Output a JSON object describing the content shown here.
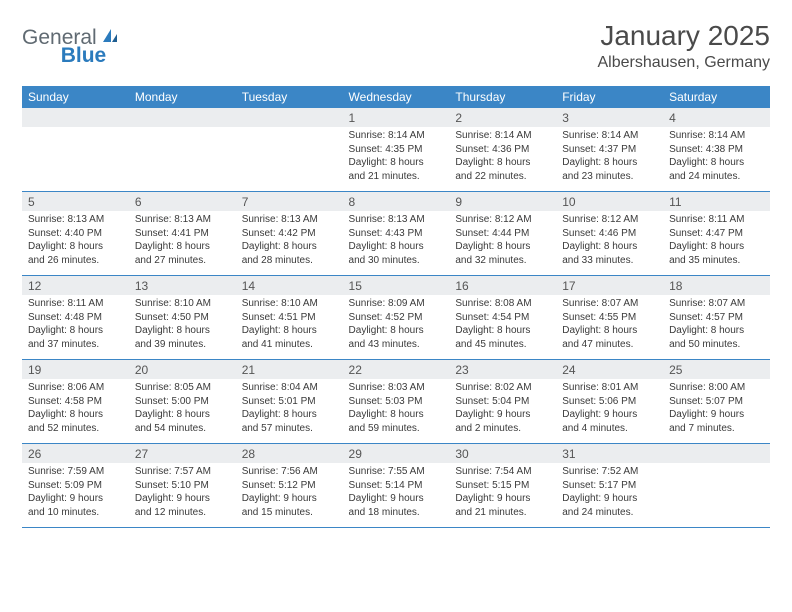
{
  "brand": {
    "part1": "General",
    "part2": "Blue"
  },
  "title": "January 2025",
  "location": "Albershausen, Germany",
  "colors": {
    "header_bg": "#3b86c6",
    "header_text": "#ffffff",
    "daynum_bg": "#ebedef",
    "text": "#3a3a3a",
    "logo_gray": "#606a72",
    "logo_blue": "#2b7bbd",
    "title_color": "#4a4a4a"
  },
  "dayNames": [
    "Sunday",
    "Monday",
    "Tuesday",
    "Wednesday",
    "Thursday",
    "Friday",
    "Saturday"
  ],
  "weeks": [
    [
      null,
      null,
      null,
      {
        "d": "1",
        "sr": "8:14 AM",
        "ss": "4:35 PM",
        "dh": "8",
        "dm": "21"
      },
      {
        "d": "2",
        "sr": "8:14 AM",
        "ss": "4:36 PM",
        "dh": "8",
        "dm": "22"
      },
      {
        "d": "3",
        "sr": "8:14 AM",
        "ss": "4:37 PM",
        "dh": "8",
        "dm": "23"
      },
      {
        "d": "4",
        "sr": "8:14 AM",
        "ss": "4:38 PM",
        "dh": "8",
        "dm": "24"
      }
    ],
    [
      {
        "d": "5",
        "sr": "8:13 AM",
        "ss": "4:40 PM",
        "dh": "8",
        "dm": "26"
      },
      {
        "d": "6",
        "sr": "8:13 AM",
        "ss": "4:41 PM",
        "dh": "8",
        "dm": "27"
      },
      {
        "d": "7",
        "sr": "8:13 AM",
        "ss": "4:42 PM",
        "dh": "8",
        "dm": "28"
      },
      {
        "d": "8",
        "sr": "8:13 AM",
        "ss": "4:43 PM",
        "dh": "8",
        "dm": "30"
      },
      {
        "d": "9",
        "sr": "8:12 AM",
        "ss": "4:44 PM",
        "dh": "8",
        "dm": "32"
      },
      {
        "d": "10",
        "sr": "8:12 AM",
        "ss": "4:46 PM",
        "dh": "8",
        "dm": "33"
      },
      {
        "d": "11",
        "sr": "8:11 AM",
        "ss": "4:47 PM",
        "dh": "8",
        "dm": "35"
      }
    ],
    [
      {
        "d": "12",
        "sr": "8:11 AM",
        "ss": "4:48 PM",
        "dh": "8",
        "dm": "37"
      },
      {
        "d": "13",
        "sr": "8:10 AM",
        "ss": "4:50 PM",
        "dh": "8",
        "dm": "39"
      },
      {
        "d": "14",
        "sr": "8:10 AM",
        "ss": "4:51 PM",
        "dh": "8",
        "dm": "41"
      },
      {
        "d": "15",
        "sr": "8:09 AM",
        "ss": "4:52 PM",
        "dh": "8",
        "dm": "43"
      },
      {
        "d": "16",
        "sr": "8:08 AM",
        "ss": "4:54 PM",
        "dh": "8",
        "dm": "45"
      },
      {
        "d": "17",
        "sr": "8:07 AM",
        "ss": "4:55 PM",
        "dh": "8",
        "dm": "47"
      },
      {
        "d": "18",
        "sr": "8:07 AM",
        "ss": "4:57 PM",
        "dh": "8",
        "dm": "50"
      }
    ],
    [
      {
        "d": "19",
        "sr": "8:06 AM",
        "ss": "4:58 PM",
        "dh": "8",
        "dm": "52"
      },
      {
        "d": "20",
        "sr": "8:05 AM",
        "ss": "5:00 PM",
        "dh": "8",
        "dm": "54"
      },
      {
        "d": "21",
        "sr": "8:04 AM",
        "ss": "5:01 PM",
        "dh": "8",
        "dm": "57"
      },
      {
        "d": "22",
        "sr": "8:03 AM",
        "ss": "5:03 PM",
        "dh": "8",
        "dm": "59"
      },
      {
        "d": "23",
        "sr": "8:02 AM",
        "ss": "5:04 PM",
        "dh": "9",
        "dm": "2"
      },
      {
        "d": "24",
        "sr": "8:01 AM",
        "ss": "5:06 PM",
        "dh": "9",
        "dm": "4"
      },
      {
        "d": "25",
        "sr": "8:00 AM",
        "ss": "5:07 PM",
        "dh": "9",
        "dm": "7"
      }
    ],
    [
      {
        "d": "26",
        "sr": "7:59 AM",
        "ss": "5:09 PM",
        "dh": "9",
        "dm": "10"
      },
      {
        "d": "27",
        "sr": "7:57 AM",
        "ss": "5:10 PM",
        "dh": "9",
        "dm": "12"
      },
      {
        "d": "28",
        "sr": "7:56 AM",
        "ss": "5:12 PM",
        "dh": "9",
        "dm": "15"
      },
      {
        "d": "29",
        "sr": "7:55 AM",
        "ss": "5:14 PM",
        "dh": "9",
        "dm": "18"
      },
      {
        "d": "30",
        "sr": "7:54 AM",
        "ss": "5:15 PM",
        "dh": "9",
        "dm": "21"
      },
      {
        "d": "31",
        "sr": "7:52 AM",
        "ss": "5:17 PM",
        "dh": "9",
        "dm": "24"
      },
      null
    ]
  ]
}
